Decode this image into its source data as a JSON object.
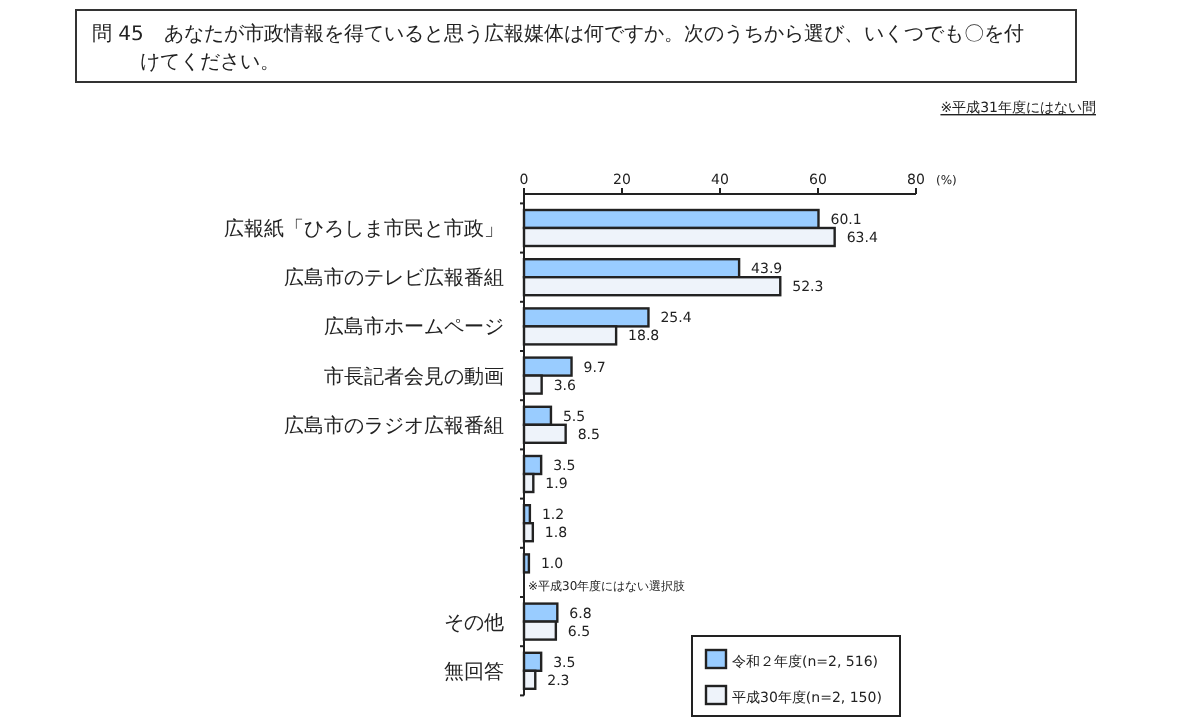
{
  "chart_data": {
    "type": "bar",
    "orientation": "horizontal",
    "title": "問 45　あなたが市政情報を得ていると思う広報媒体は何ですか。次のうちから選び、いくつでも〇を付けてください。",
    "xlabel": "(%)",
    "categories": [
      "広報紙「ひろしま市民と市政」",
      "広島市のテレビ広報番組",
      "広島市ホームページ",
      "市長記者会見の動画",
      "広島市のラジオ広報番組",
      null,
      null,
      null,
      "その他",
      "無回答"
    ],
    "series": [
      {
        "name": "令和２年度(n=2, 516)",
        "color": "#99ccff",
        "values": [
          60.1,
          43.9,
          25.4,
          9.7,
          5.5,
          3.5,
          1.2,
          1.0,
          6.8,
          3.5
        ],
        "value_labels": [
          "60.1",
          "43.9",
          "25.4",
          "9.7",
          "5.5",
          "3.5",
          "1.2",
          "1.0",
          "6.8",
          "3.5"
        ]
      },
      {
        "name": "平成30年度(n=2, 150)",
        "color": "#eef3fa",
        "values": [
          63.4,
          52.3,
          18.8,
          3.6,
          8.5,
          1.9,
          1.8,
          null,
          6.5,
          2.3
        ],
        "value_labels": [
          "63.4",
          "52.3",
          "18.8",
          "3.6",
          "8.5",
          "1.9",
          "1.8",
          null,
          "6.5",
          "2.3"
        ]
      }
    ],
    "xlim": [
      0,
      80
    ],
    "xticks": [
      0,
      20,
      40,
      60,
      80
    ],
    "legend": "bottom right",
    "annotations": [
      "※平成31年度にはない問",
      "※平成30年度にはない選択肢"
    ]
  }
}
